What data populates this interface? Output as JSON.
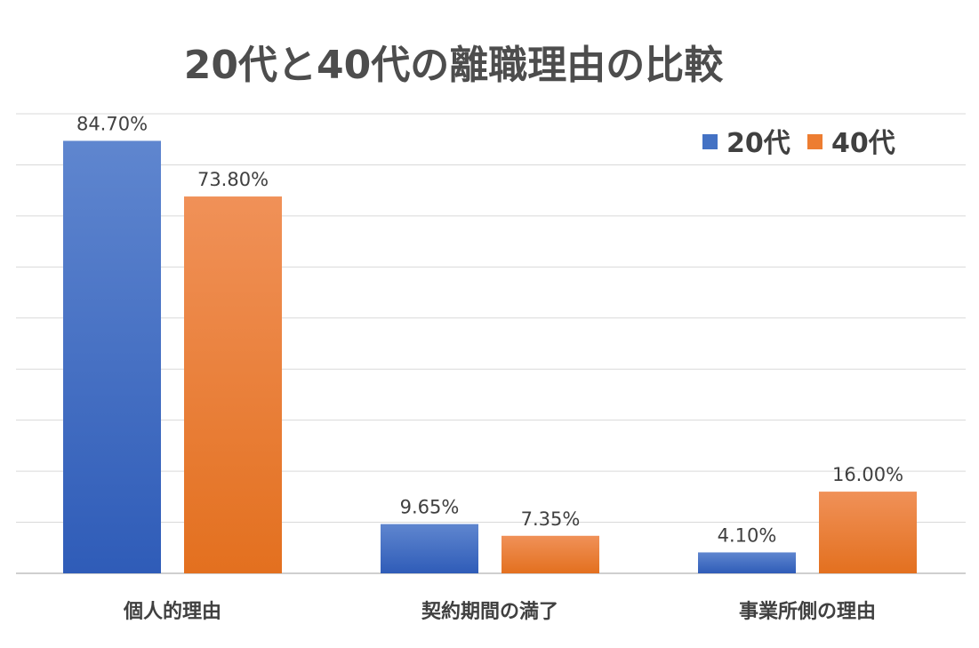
{
  "chart_data": {
    "type": "bar",
    "title": "20代と40代の離職理由の比較",
    "categories": [
      "個人的理由",
      "契約期間の満了",
      "事業所側の理由"
    ],
    "series": [
      {
        "name": "20代",
        "values": [
          84.7,
          9.65,
          4.1
        ],
        "labels": [
          "84.70%",
          "9.65%",
          "4.10%"
        ],
        "color": "#4472c4"
      },
      {
        "name": "40代",
        "values": [
          73.8,
          7.35,
          16.0
        ],
        "labels": [
          "73.80%",
          "7.35%",
          "16.00%"
        ],
        "color": "#ed7d31"
      }
    ],
    "ylim": [
      0,
      90
    ],
    "y_grid_step": 10,
    "grid": true,
    "legend_position": "top-right",
    "xlabel": "",
    "ylabel": ""
  }
}
